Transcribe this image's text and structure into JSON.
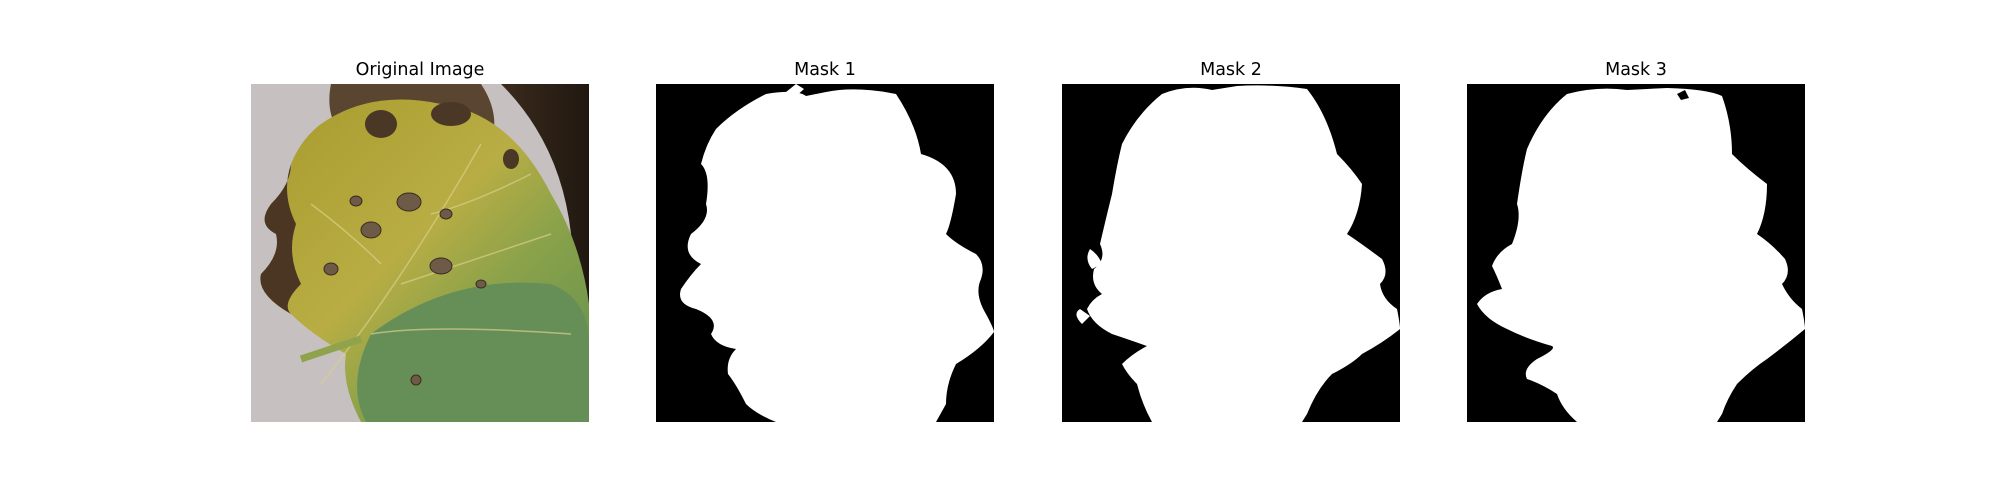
{
  "figure": {
    "panels": [
      {
        "title": "Original Image",
        "kind": "photo"
      },
      {
        "title": "Mask 1",
        "kind": "binary-mask"
      },
      {
        "title": "Mask 2",
        "kind": "binary-mask"
      },
      {
        "title": "Mask 3",
        "kind": "binary-mask"
      }
    ]
  },
  "colors": {
    "background": "#ffffff",
    "mask_foreground": "#ffffff",
    "mask_background": "#000000",
    "leaf_yellow": "#b7a83a",
    "leaf_green": "#6f9a52",
    "backdrop_gray": "#c9c4c3",
    "lesion_brown": "#6b5540"
  }
}
